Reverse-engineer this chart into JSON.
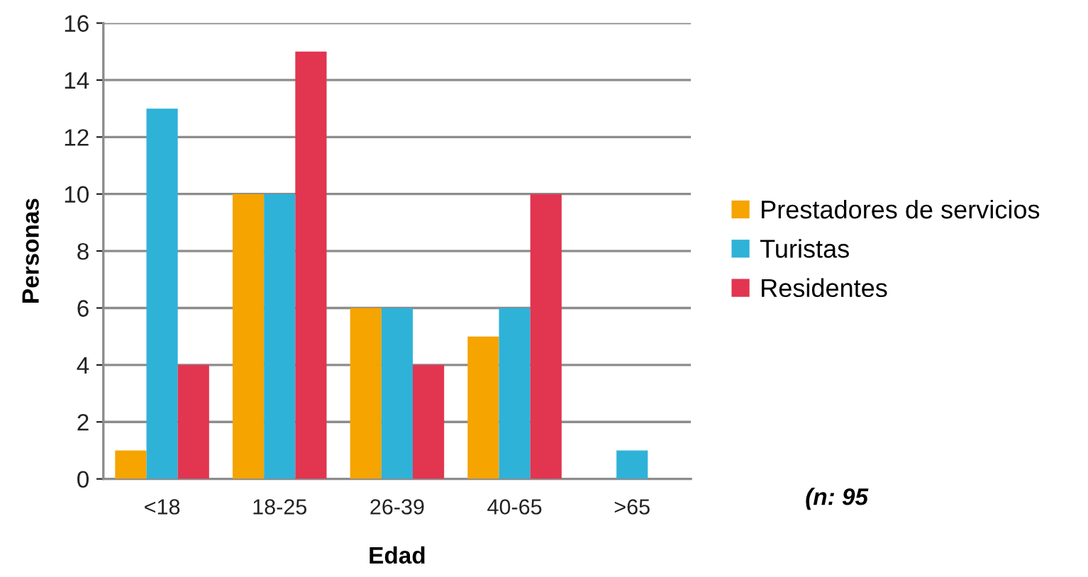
{
  "chart_data": {
    "type": "bar",
    "xlabel": "Edad",
    "ylabel": "Personas",
    "categories": [
      "<18",
      "18-25",
      "26-39",
      "40-65",
      ">65"
    ],
    "series": [
      {
        "name": "Prestadores de servicios",
        "color": "#f5a400",
        "values": [
          1,
          10,
          6,
          5,
          0
        ]
      },
      {
        "name": "Turistas",
        "color": "#2fb2d8",
        "values": [
          13,
          10,
          6,
          6,
          1
        ]
      },
      {
        "name": "Residentes",
        "color": "#e23550",
        "values": [
          4,
          15,
          4,
          10,
          0
        ]
      }
    ],
    "ylim": [
      0,
      16
    ],
    "yticks": [
      0,
      2,
      4,
      6,
      8,
      10,
      12,
      14,
      16
    ],
    "grid": "y",
    "legend": "right",
    "annotations": [
      "(n: 95"
    ]
  }
}
